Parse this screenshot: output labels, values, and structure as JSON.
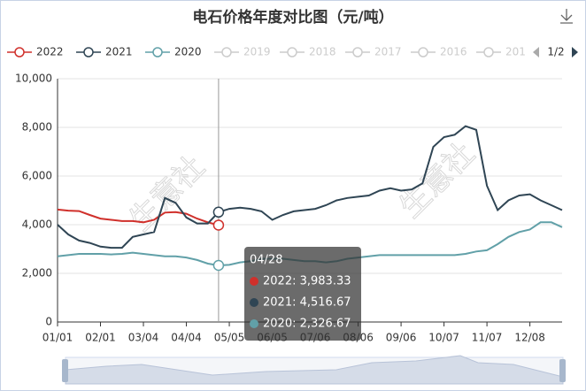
{
  "chart_data": {
    "type": "line",
    "title": "电石价格年度对比图（元/吨）",
    "categories": [
      "01/01",
      null,
      null,
      null,
      "02/01",
      null,
      null,
      null,
      "03/04",
      null,
      null,
      null,
      "04/04",
      null,
      null,
      null,
      "05/05",
      null,
      null,
      null,
      "06/05",
      null,
      null,
      null,
      "07/06",
      null,
      null,
      null,
      "08/06",
      null,
      null,
      null,
      "09/06",
      null,
      null,
      null,
      "10/07",
      null,
      null,
      null,
      "11/07",
      null,
      null,
      null,
      "12/08",
      null,
      null,
      null
    ],
    "series": [
      {
        "name": "2022",
        "color": "#d0302b",
        "values": [
          4620,
          4580,
          4560,
          4400,
          4250,
          4200,
          4150,
          4150,
          4100,
          4200,
          4500,
          4520,
          4450,
          4250,
          4100,
          3983.33,
          null,
          null,
          null,
          null,
          null,
          null,
          null,
          null,
          null,
          null,
          null,
          null,
          null,
          null,
          null,
          null,
          null,
          null,
          null,
          null,
          null,
          null,
          null,
          null,
          null,
          null,
          null,
          null,
          null,
          null,
          null,
          null
        ]
      },
      {
        "name": "2021",
        "color": "#2f4554",
        "values": [
          4000,
          3600,
          3350,
          3250,
          3100,
          3050,
          3050,
          3500,
          3600,
          3700,
          5100,
          4900,
          4300,
          4050,
          4050,
          4516.67,
          4650,
          4700,
          4650,
          4550,
          4200,
          4400,
          4550,
          4600,
          4650,
          4800,
          5000,
          5100,
          5150,
          5200,
          5400,
          5500,
          5400,
          5450,
          5700,
          7200,
          7600,
          7700,
          8050,
          7900,
          5600,
          4600,
          5000,
          5200,
          5250,
          5000,
          4800,
          4600
        ]
      },
      {
        "name": "2020",
        "color": "#61a0a8",
        "values": [
          2700,
          2750,
          2800,
          2800,
          2800,
          2780,
          2800,
          2850,
          2800,
          2750,
          2700,
          2700,
          2650,
          2550,
          2400,
          2326.67,
          2350,
          2450,
          2500,
          2600,
          2600,
          2600,
          2550,
          2500,
          2500,
          2450,
          2500,
          2600,
          2650,
          2700,
          2750,
          2750,
          2750,
          2750,
          2750,
          2750,
          2750,
          2750,
          2800,
          2900,
          2950,
          3200,
          3500,
          3700,
          3800,
          4100,
          4100,
          3900
        ]
      }
    ],
    "legend_inactive": [
      "2019",
      "2018",
      "2017",
      "2016",
      "201"
    ],
    "legend_page": "1/2",
    "ylim": [
      0,
      10000
    ],
    "yticks": [
      0,
      {
        "value": 2000,
        "label": "2,000"
      },
      {
        "value": 4000,
        "label": "4,000"
      },
      {
        "value": 6000,
        "label": "6,000"
      },
      {
        "value": 8000,
        "label": "8,000"
      },
      {
        "value": 10000,
        "label": "10,000"
      }
    ],
    "grid": true,
    "watermark": "生意社",
    "tooltip": {
      "title": "04/28",
      "items": [
        {
          "text": "2022: 3,983.33",
          "value": 3983.33
        },
        {
          "text": "2021: 4,516.67",
          "value": 4516.67
        },
        {
          "text": "2020: 2,326.67",
          "value": 2326.67
        }
      ]
    }
  }
}
